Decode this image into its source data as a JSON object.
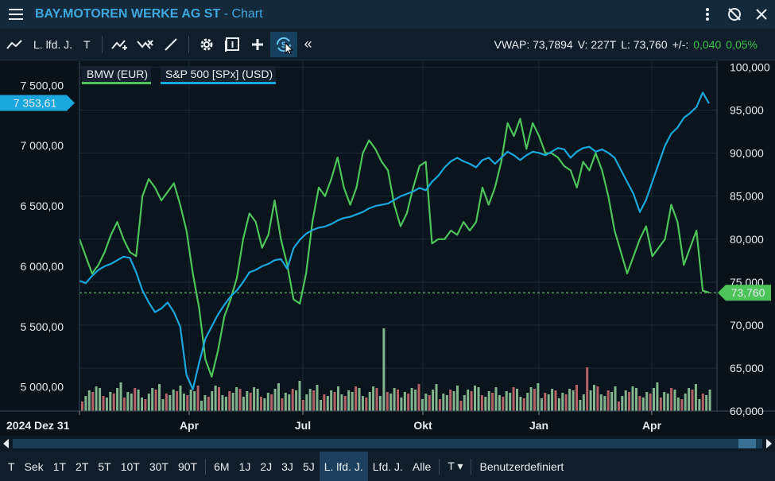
{
  "title": {
    "main": "BAY.MOTOREN WERKE AG ST",
    "suffix": " - Chart"
  },
  "toolbar": {
    "period_label": "L. lfd. J.",
    "interval_label": "T",
    "stats": {
      "vwap": "VWAP: 73,7894",
      "volume": "V: 227T",
      "last": "L: 73,760",
      "change_label": "+/-:",
      "change_abs": "0,040",
      "change_pct": "0,05%"
    }
  },
  "legend": {
    "bmw": "BMW (EUR)",
    "spx": "S&P 500 [SPx] (USD)"
  },
  "chart_data": {
    "type": "line",
    "x_ticks": [
      "2024 Dez 31",
      "Apr",
      "Jul",
      "Okt",
      "Jan",
      "Apr"
    ],
    "left_axis": {
      "ticks": [
        "7 500,00",
        "7 000,00",
        "6 500,00",
        "6 000,00",
        "5 500,00",
        "5 000,00"
      ],
      "ylim": [
        4800,
        7700
      ],
      "marker": "7 353,61"
    },
    "right_axis": {
      "ticks": [
        "100,000",
        "95,000",
        "90,000",
        "85,000",
        "80,000",
        "75,000",
        "70,000",
        "65,000",
        "60,000"
      ],
      "ylim": [
        60,
        100.7
      ],
      "marker": "73,760"
    },
    "series": [
      {
        "name": "BMW (EUR)",
        "axis": "right",
        "color": "#4cc45a",
        "values": [
          80.0,
          78.0,
          76.0,
          77.0,
          78.5,
          80.5,
          82.0,
          80.0,
          78.5,
          78.0,
          85.0,
          87.0,
          86.0,
          84.5,
          85.5,
          86.5,
          84.0,
          81.0,
          76.0,
          72.0,
          66.0,
          64.0,
          67.0,
          71.0,
          73.0,
          75.5,
          80.0,
          83.0,
          82.0,
          79.0,
          80.5,
          84.5,
          80.0,
          77.0,
          73.0,
          72.5,
          76.0,
          82.0,
          86.0,
          85.0,
          87.0,
          89.5,
          86.0,
          84.0,
          86.0,
          90.0,
          91.5,
          90.5,
          89.0,
          88.0,
          84.0,
          81.5,
          83.0,
          86.0,
          88.5,
          89.0,
          79.5,
          80.0,
          80.0,
          81.0,
          80.5,
          82.0,
          81.0,
          82.0,
          86.0,
          84.0,
          86.0,
          89.0,
          93.5,
          92.0,
          94.0,
          90.5,
          93.5,
          92.0,
          90.0,
          90.0,
          89.5,
          88.5,
          88.0,
          86.0,
          89.0,
          88.0,
          90.0,
          88.0,
          85.0,
          81.0,
          78.5,
          76.0,
          78.0,
          80.0,
          81.5,
          78.0,
          79.0,
          80.0,
          84.0,
          82.0,
          77.0,
          79.0,
          81.0,
          74.0,
          73.8
        ]
      },
      {
        "name": "S&P 500 [SPx] (USD)",
        "axis": "left",
        "color": "#1aa7dd",
        "values": [
          5880,
          5860,
          5920,
          5970,
          6000,
          6020,
          6050,
          6080,
          6070,
          5950,
          5800,
          5700,
          5620,
          5650,
          5700,
          5620,
          5500,
          5100,
          4980,
          5200,
          5400,
          5500,
          5600,
          5680,
          5750,
          5800,
          5870,
          5950,
          5970,
          6000,
          6020,
          6050,
          6060,
          5980,
          6150,
          6220,
          6270,
          6300,
          6320,
          6330,
          6350,
          6380,
          6400,
          6410,
          6430,
          6450,
          6480,
          6500,
          6510,
          6520,
          6550,
          6580,
          6600,
          6620,
          6650,
          6630,
          6700,
          6750,
          6820,
          6870,
          6900,
          6870,
          6850,
          6820,
          6880,
          6900,
          6850,
          6900,
          6950,
          6920,
          6880,
          6920,
          6950,
          6940,
          6920,
          6950,
          6980,
          6970,
          6900,
          6950,
          6980,
          6990,
          6950,
          6970,
          6940,
          6900,
          6800,
          6700,
          6600,
          6450,
          6550,
          6700,
          6850,
          7000,
          7100,
          7150,
          7230,
          7270,
          7320,
          7440,
          7350
        ]
      }
    ]
  }
}
